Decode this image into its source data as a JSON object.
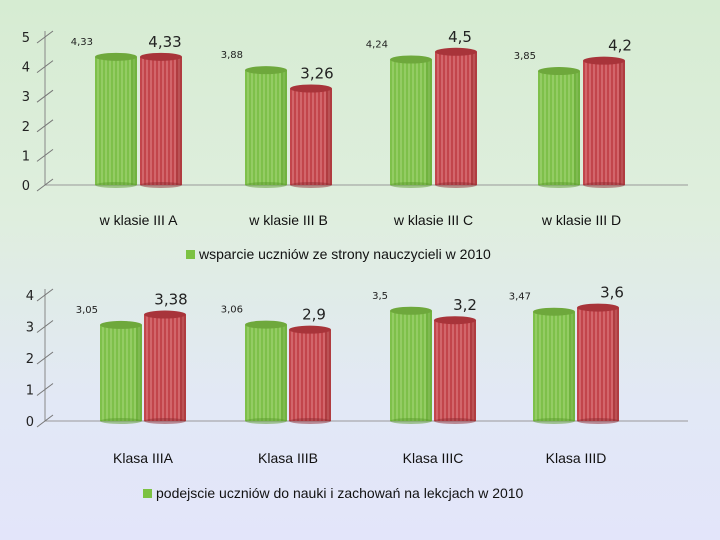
{
  "chart_data": [
    {
      "type": "bar",
      "categories": [
        "w klasie III A",
        "w klasie III B",
        "w klasie III C",
        "w klasie III D"
      ],
      "series": [
        {
          "name": "wsparcie uczniów ze strony nauczycieli w 2010 (green)",
          "values": [
            4.33,
            3.88,
            4.24,
            3.85
          ],
          "labels": [
            "4,33",
            "3,88",
            "4,24",
            "3,85"
          ],
          "color": "#7cc242"
        },
        {
          "name": "wsparcie uczniów ze strony nauczycieli w 2010 (red)",
          "values": [
            4.33,
            3.26,
            4.5,
            4.2
          ],
          "labels": [
            "4,33",
            "3,26",
            "4,5",
            "4,2"
          ],
          "color": "#c9464c"
        }
      ],
      "yticks": [
        0,
        1,
        2,
        3,
        4,
        5
      ],
      "ylim": [
        0,
        5
      ],
      "legend": "wsparcie uczniów ze strony nauczycieli w 2010",
      "legend_color": "#7cc242"
    },
    {
      "type": "bar",
      "categories": [
        "Klasa IIIA",
        "Klasa IIIB",
        "Klasa IIIC",
        "Klasa IIID"
      ],
      "series": [
        {
          "name": "podejscie uczniów do nauki i zachowań na lekcjach w 2010 (green)",
          "values": [
            3.05,
            3.06,
            3.5,
            3.47
          ],
          "labels": [
            "3,05",
            "3,06",
            "3,5",
            "3,47"
          ],
          "color": "#7cc242"
        },
        {
          "name": "podejscie uczniów do nauki i zachowań na lekcjach w 2010 (red)",
          "values": [
            3.38,
            2.9,
            3.2,
            3.6
          ],
          "labels": [
            "3,38",
            "2,9",
            "3,2",
            "3,6"
          ],
          "color": "#c9464c"
        }
      ],
      "yticks": [
        0,
        1,
        2,
        3,
        4
      ],
      "ylim": [
        0,
        4
      ],
      "legend": "podejscie uczniów do nauki i zachowań na lekcjach w 2010",
      "legend_color": "#7cc242"
    }
  ]
}
